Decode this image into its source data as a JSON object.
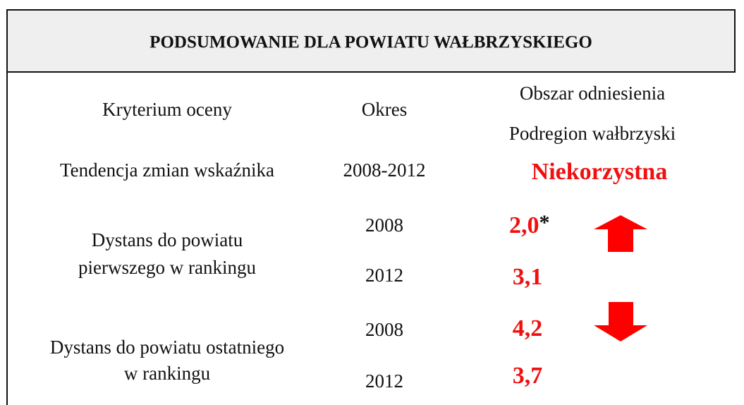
{
  "header": {
    "title": "PODSUMOWANIE DLA POWIATU WAŁBRZYSKIEGO"
  },
  "table": {
    "head": {
      "criterion": "Kryterium oceny",
      "period": "Okres",
      "area": "Obszar odniesienia",
      "subregion": "Podregion wałbrzyski"
    },
    "rows": [
      {
        "criterion": [
          "Tendencja zmian wskaźnika"
        ],
        "periods": [
          "2008-2012"
        ],
        "values": [
          "Niekorzystna"
        ]
      },
      {
        "criterion": [
          "Dystans do powiatu",
          "pierwszego w rankingu"
        ],
        "periods": [
          "2008",
          "2012"
        ],
        "values": [
          "2,0",
          "3,1"
        ],
        "note": "*"
      },
      {
        "criterion": [
          "Dystans do powiatu ostatniego",
          "w rankingu"
        ],
        "periods": [
          "2008",
          "2012"
        ],
        "values": [
          "4,2",
          "3,7"
        ]
      }
    ]
  }
}
